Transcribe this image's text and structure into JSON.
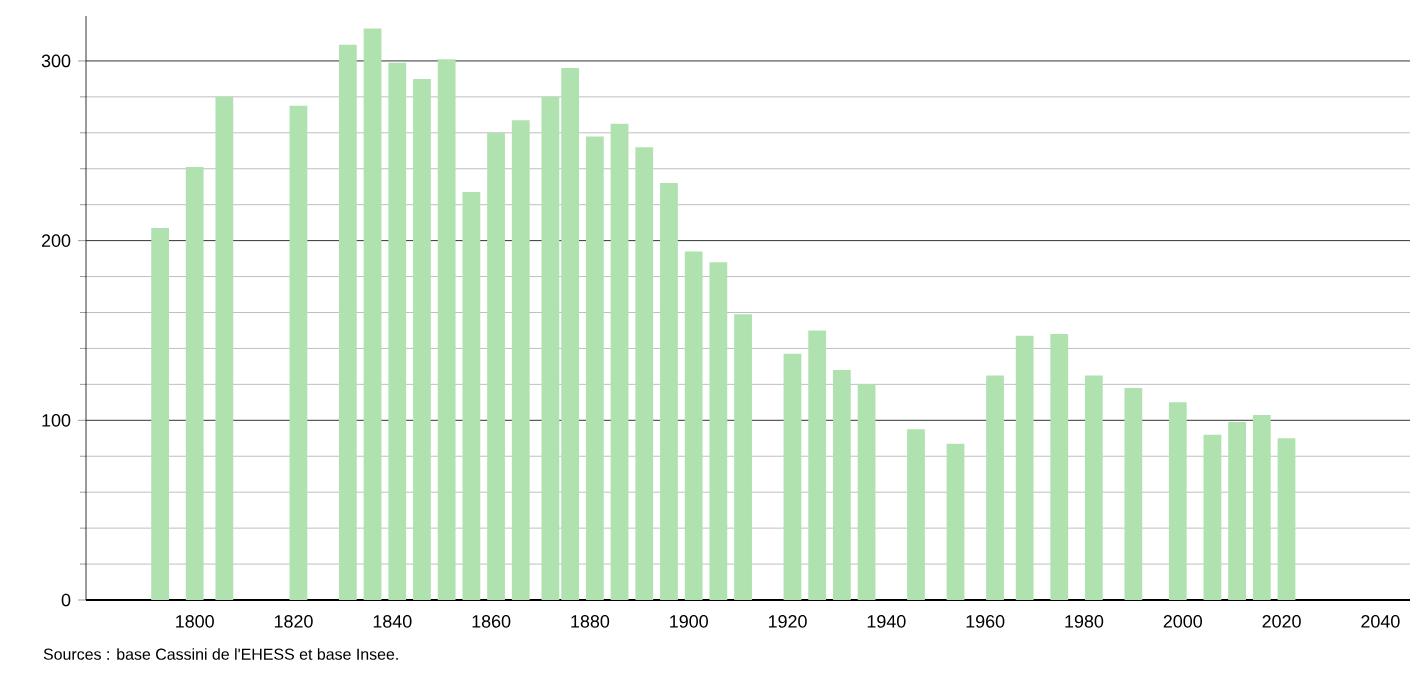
{
  "chart_data": {
    "type": "bar",
    "x": [
      1793,
      1800,
      1806,
      1821,
      1831,
      1836,
      1841,
      1846,
      1851,
      1856,
      1861,
      1866,
      1872,
      1876,
      1881,
      1886,
      1891,
      1896,
      1901,
      1906,
      1911,
      1921,
      1926,
      1931,
      1936,
      1946,
      1954,
      1962,
      1968,
      1975,
      1982,
      1990,
      1999,
      2006,
      2011,
      2016,
      2021
    ],
    "values": [
      207,
      241,
      280,
      275,
      309,
      318,
      299,
      290,
      301,
      227,
      260,
      267,
      280,
      296,
      258,
      265,
      252,
      232,
      194,
      188,
      159,
      137,
      150,
      128,
      120,
      95,
      87,
      125,
      147,
      148,
      125,
      118,
      110,
      92,
      99,
      103,
      90
    ],
    "color": "#b0e2b0",
    "xlim": [
      1778,
      2046
    ],
    "ylim": [
      0,
      325
    ],
    "xticks": [
      1800,
      1820,
      1840,
      1860,
      1880,
      1900,
      1920,
      1940,
      1960,
      1980,
      2000,
      2020,
      2040
    ],
    "yticks": [
      0,
      100,
      200,
      300
    ],
    "grid": "y",
    "annotations": [
      "Sources : base Cassini de l'EHESS et base Insee."
    ]
  }
}
